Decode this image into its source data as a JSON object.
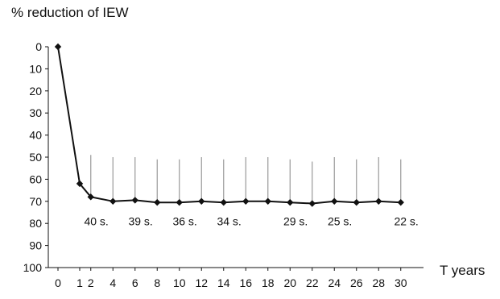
{
  "chart_data": {
    "type": "line",
    "ylabel": "% reduction of IEW",
    "xlabel": "T years",
    "x": [
      0,
      1,
      2,
      4,
      6,
      8,
      10,
      12,
      14,
      16,
      18,
      20,
      22,
      24,
      26,
      28,
      30
    ],
    "y": [
      0,
      62,
      68,
      70,
      69.5,
      70.5,
      70.5,
      70,
      70.5,
      70,
      70,
      70.5,
      71,
      70,
      70.5,
      70,
      70.5
    ],
    "x_tick_labels": [
      "0",
      "1",
      "2",
      "4",
      "6",
      "8",
      "10",
      "12",
      "14",
      "16",
      "18",
      "20",
      "22",
      "24",
      "26",
      "28",
      "30"
    ],
    "y_ticks": [
      0,
      10,
      20,
      30,
      40,
      50,
      60,
      70,
      80,
      90,
      100
    ],
    "ylim": [
      0,
      100
    ],
    "y_inverted": true,
    "error_bars": [
      {
        "x": 2,
        "from": 49,
        "to": 68
      },
      {
        "x": 4,
        "from": 50,
        "to": 70
      },
      {
        "x": 6,
        "from": 50,
        "to": 69.5
      },
      {
        "x": 8,
        "from": 51,
        "to": 70.5
      },
      {
        "x": 10,
        "from": 51,
        "to": 70.5
      },
      {
        "x": 12,
        "from": 50,
        "to": 70
      },
      {
        "x": 14,
        "from": 51,
        "to": 70.5
      },
      {
        "x": 16,
        "from": 50,
        "to": 70
      },
      {
        "x": 18,
        "from": 50,
        "to": 70
      },
      {
        "x": 20,
        "from": 51,
        "to": 70.5
      },
      {
        "x": 22,
        "from": 52,
        "to": 71
      },
      {
        "x": 24,
        "from": 50,
        "to": 70
      },
      {
        "x": 26,
        "from": 51,
        "to": 70.5
      },
      {
        "x": 28,
        "from": 50,
        "to": 70
      },
      {
        "x": 30,
        "from": 51,
        "to": 70.5
      }
    ],
    "annotations": [
      {
        "text": "40 s.",
        "x": 2.5,
        "y": 79
      },
      {
        "text": "39 s.",
        "x": 6.5,
        "y": 79
      },
      {
        "text": "36 s.",
        "x": 10.5,
        "y": 79
      },
      {
        "text": "34 s.",
        "x": 14.5,
        "y": 79
      },
      {
        "text": "29 s.",
        "x": 20.5,
        "y": 79
      },
      {
        "text": "25 s.",
        "x": 24.5,
        "y": 79
      },
      {
        "text": "22 s.",
        "x": 30.5,
        "y": 79
      }
    ],
    "colors": {
      "line": "#111111",
      "error_bar": "#999999",
      "axis": "#111111"
    }
  }
}
